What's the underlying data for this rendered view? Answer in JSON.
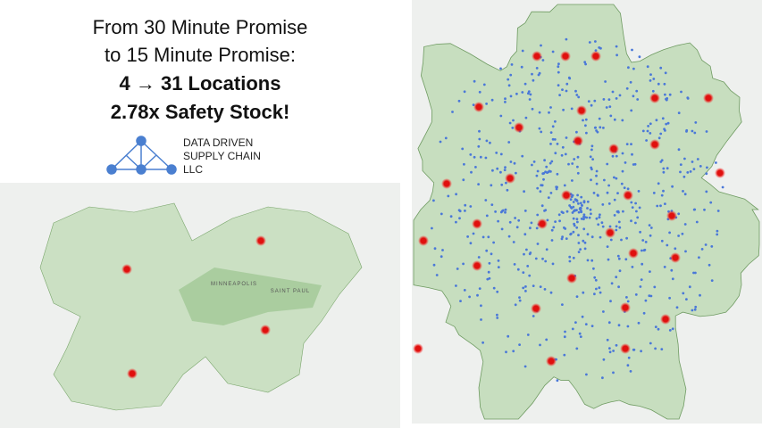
{
  "header": {
    "lines": [
      "From 30 Minute Promise",
      "to 15 Minute Promise:",
      "4 → 31 Locations",
      "2.78x Safety Stock!"
    ]
  },
  "logo": {
    "lines": [
      "DATA DRIVEN",
      "SUPPLY CHAIN",
      "LLC"
    ]
  },
  "left_map": {
    "labels": [
      "MINNEAPOLIS",
      "SAINT PAUL"
    ]
  }
}
